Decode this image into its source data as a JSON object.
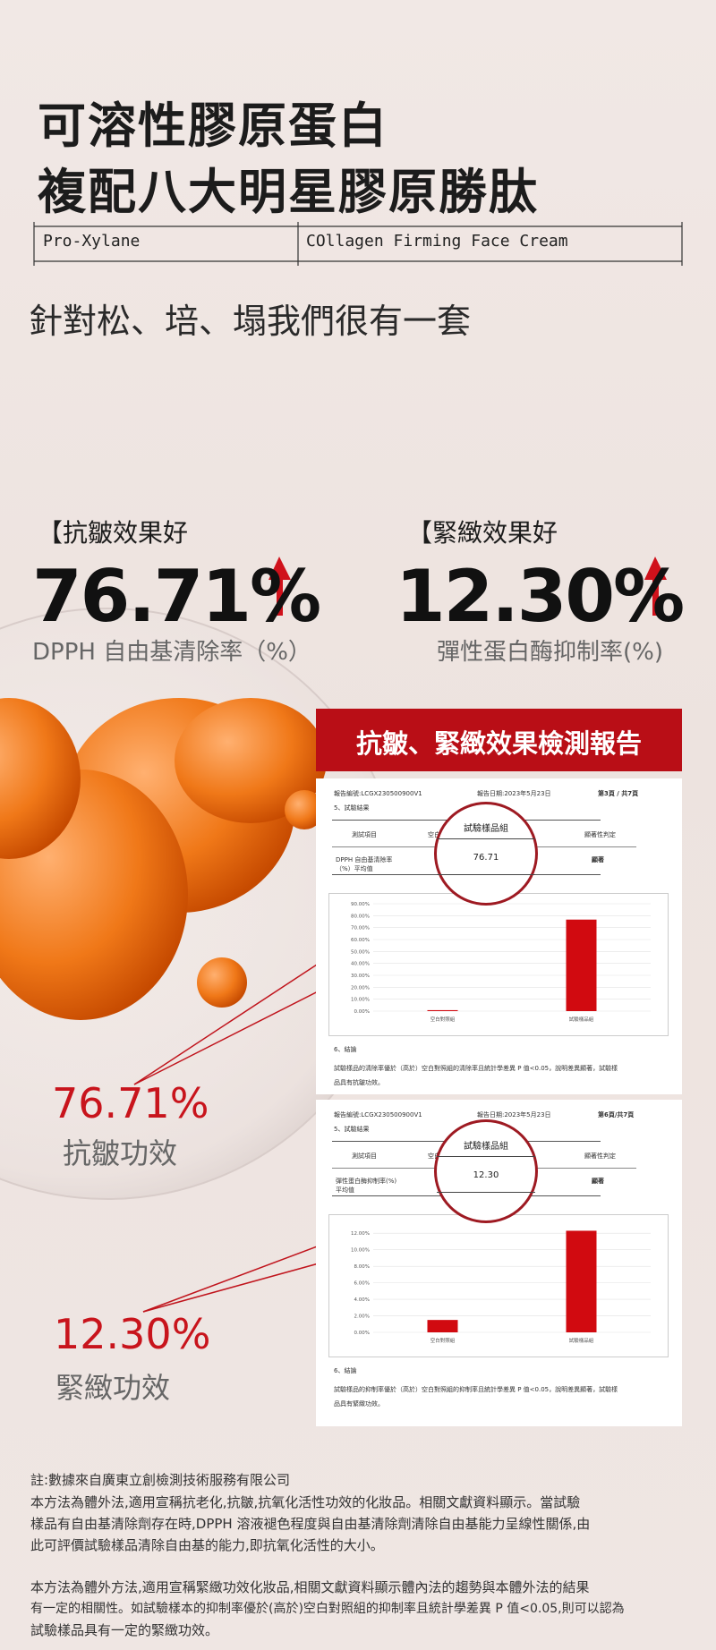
{
  "header": {
    "title_lines": [
      "可溶性膠原蛋白",
      "複配八大明星膠原勝肽"
    ],
    "tags": [
      "Pro-Xylane",
      "COllagen Firming Face Cream"
    ],
    "subtitle": "針對松、培、塌我們很有一套"
  },
  "stats": [
    {
      "label": "【抗皺效果好",
      "value": "76.71%",
      "desc": "DPPH 自由基清除率（%）"
    },
    {
      "label": "【緊緻效果好",
      "value": "12.30%",
      "desc": "彈性蛋白酶抑制率(%)"
    }
  ],
  "report": {
    "title": "抗皺、緊緻效果檢測報告",
    "pages": [
      {
        "code": "報告編號:LCGX230500900V1",
        "date": "報告日期:2023年5月23日",
        "page": "第3頁 / 共7頁",
        "section": "5、試驗結果",
        "headers": [
          "測試項目",
          "空白對",
          "顯著性判定"
        ],
        "row_label": "DPPH 自由基清除率（%）平均值",
        "row_result": "顯著",
        "magnifier_header": "試驗樣品組",
        "magnifier_value": "76.71",
        "chart": {
          "type": "bar",
          "categories": [
            "空白對照組",
            "試驗樣品組"
          ],
          "values": [
            0.8,
            76.71
          ],
          "color": "#d10a10",
          "ylim": [
            0,
            90
          ],
          "yticks": [
            {
              "value": 0,
              "label": "0.00%"
            },
            {
              "value": 10,
              "label": "10.00%"
            },
            {
              "value": 20,
              "label": "20.00%"
            },
            {
              "value": 30,
              "label": "30.00%"
            },
            {
              "value": 40,
              "label": "40.00%"
            },
            {
              "value": 50,
              "label": "50.00%"
            },
            {
              "value": 60,
              "label": "60.00%"
            },
            {
              "value": 70,
              "label": "70.00%"
            },
            {
              "value": 80,
              "label": "80.00%"
            },
            {
              "value": 90,
              "label": "90.00%"
            }
          ]
        },
        "conclusion_heading": "6、結論",
        "conclusion": "試驗樣品的清除率優於（高於）空白對照組的清除率且統計學差異 P 值<0.05，說明差異顯著，試驗樣品具有抗皺功效。"
      },
      {
        "code": "報告編號:LCGX230500900V1",
        "date": "報告日期:2023年5月23日",
        "page": "第6頁/共7頁",
        "section": "5、試驗結果",
        "headers": [
          "測試項目",
          "空白對",
          "顯著性判定"
        ],
        "row_label": "彈性蛋白酶抑制率(%)平均值",
        "row_result": "顯著",
        "magnifier_header": "試驗樣品組",
        "magnifier_value": "12.30",
        "chart": {
          "type": "bar",
          "categories": [
            "空白對照組",
            "試驗樣品組"
          ],
          "values": [
            1.5,
            12.3
          ],
          "color": "#d10a10",
          "ylim": [
            0,
            13
          ],
          "yticks": [
            {
              "value": 0,
              "label": "0.00%"
            },
            {
              "value": 2,
              "label": "2.00%"
            },
            {
              "value": 4,
              "label": "4.00%"
            },
            {
              "value": 6,
              "label": "6.00%"
            },
            {
              "value": 8,
              "label": "8.00%"
            },
            {
              "value": 10,
              "label": "10.00%"
            },
            {
              "value": 12,
              "label": "12.00%"
            }
          ]
        },
        "conclusion_heading": "6、結論",
        "conclusion": "試驗樣品的抑制率優於（高於）空白對照組的抑制率且統計學差異 P 值<0.05，說明差異顯著，試驗樣品具有緊緻功效。"
      }
    ]
  },
  "callouts": [
    {
      "value": "76.71%",
      "label": "抗皺功效"
    },
    {
      "value": "12.30%",
      "label": "緊緻功效"
    }
  ],
  "notes": [
    "註:數據來自廣東立創檢測技術服務有限公司",
    "本方法為體外法,適用宣稱抗老化,抗皺,抗氧化活性功效的化妝品。相關文獻資料顯示。當試驗",
    "樣品有自由基清除劑存在時,DPPH 溶液褪色程度與自由基清除劑清除自由基能力呈線性關係,由",
    "此可評價試驗樣品清除自由基的能力,即抗氧化活性的大小。",
    "本方法為體外方法,適用宣稱緊緻功效化妝品,相關文獻資料顯示體內法的趨勢與本體外法的結果",
    "有一定的相關性。如試驗樣本的抑制率優於(高於)空白對照組的抑制率且統計學差異 P 值<0.05,則可以認為",
    "試驗樣品具有一定的緊緻功效。"
  ]
}
